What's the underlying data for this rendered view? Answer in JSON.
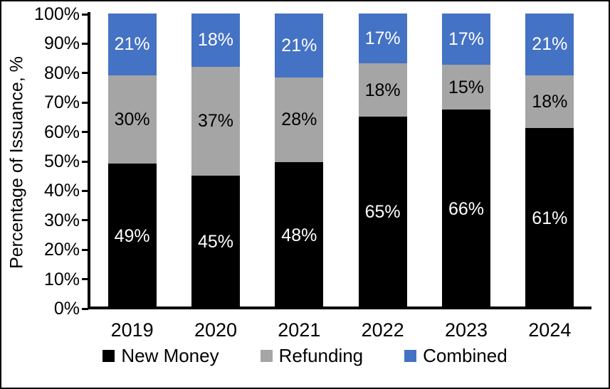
{
  "chart_data": {
    "type": "bar",
    "stacked": true,
    "orientation": "vertical",
    "title": "",
    "xlabel": "",
    "ylabel": "Percentage of Issuance, %",
    "categories": [
      "2019",
      "2020",
      "2021",
      "2022",
      "2023",
      "2024"
    ],
    "series": [
      {
        "name": "New Money",
        "color": "#000000",
        "label_color": "#ffffff",
        "values": [
          49,
          45,
          48,
          65,
          66,
          61
        ]
      },
      {
        "name": "Refunding",
        "color": "#a5a5a5",
        "label_color": "#000000",
        "values": [
          30,
          37,
          28,
          18,
          15,
          18
        ]
      },
      {
        "name": "Combined",
        "color": "#4472c4",
        "label_color": "#ffffff",
        "values": [
          21,
          18,
          21,
          17,
          17,
          21
        ]
      }
    ],
    "value_suffix": "%",
    "ylim": [
      0,
      100
    ],
    "ytick_step": 10,
    "yticks": [
      "0%",
      "10%",
      "20%",
      "30%",
      "40%",
      "50%",
      "60%",
      "70%",
      "80%",
      "90%",
      "100%"
    ],
    "grid": false,
    "legend_position": "bottom"
  },
  "colors": {
    "background": "#ffffff",
    "axis": "#000000",
    "text": "#000000",
    "border": "#000000"
  }
}
